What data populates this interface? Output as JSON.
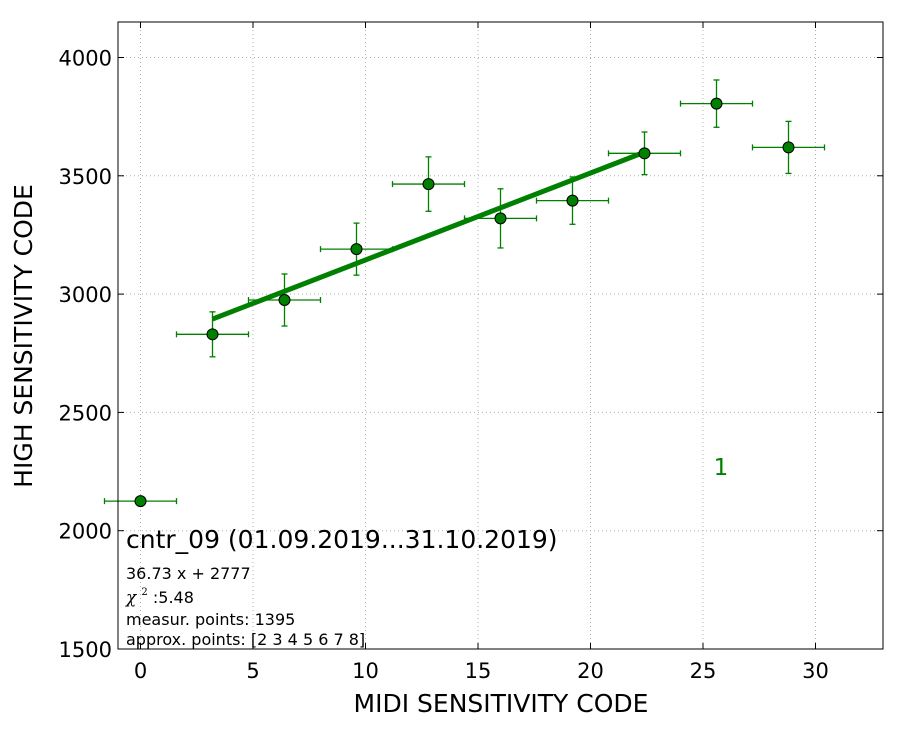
{
  "chart_data": {
    "type": "scatter",
    "xlabel": "MIDI SENSITIVITY CODE",
    "ylabel": "HIGH SENSITIVITY CODE",
    "xlim": [
      -1,
      33
    ],
    "ylim": [
      1500,
      4150
    ],
    "xticks": [
      0,
      5,
      10,
      15,
      20,
      25,
      30
    ],
    "yticks": [
      1500,
      2000,
      2500,
      3000,
      3500,
      4000
    ],
    "grid": true,
    "color": "#008000",
    "points": [
      {
        "x": 0,
        "y": 2125,
        "xerr": 1.6,
        "yerr": 0
      },
      {
        "x": 3.2,
        "y": 2830,
        "xerr": 1.6,
        "yerr": 95
      },
      {
        "x": 6.4,
        "y": 2975,
        "xerr": 1.6,
        "yerr": 110
      },
      {
        "x": 9.6,
        "y": 3190,
        "xerr": 1.6,
        "yerr": 110
      },
      {
        "x": 12.8,
        "y": 3465,
        "xerr": 1.6,
        "yerr": 115
      },
      {
        "x": 16.0,
        "y": 3320,
        "xerr": 1.6,
        "yerr": 125
      },
      {
        "x": 19.2,
        "y": 3395,
        "xerr": 1.6,
        "yerr": 100
      },
      {
        "x": 22.4,
        "y": 3595,
        "xerr": 1.6,
        "yerr": 90
      },
      {
        "x": 25.6,
        "y": 3805,
        "xerr": 1.6,
        "yerr": 100
      },
      {
        "x": 28.8,
        "y": 3620,
        "xerr": 1.6,
        "yerr": 110
      }
    ],
    "fit": {
      "slope": 36.73,
      "intercept": 2777,
      "x_range": [
        3.2,
        22.4
      ]
    },
    "group_label": "1",
    "annotations": {
      "title": "cntr_09 (01.09.2019...31.10.2019)",
      "equation": "36.73 x + 2777",
      "chi_symbol": "χ",
      "chi_sup": "2",
      "chi_value": " :5.48",
      "measur_points": "measur. points: 1395",
      "approx_points": "approx. points: [2 3 4 5 6 7 8]"
    }
  }
}
